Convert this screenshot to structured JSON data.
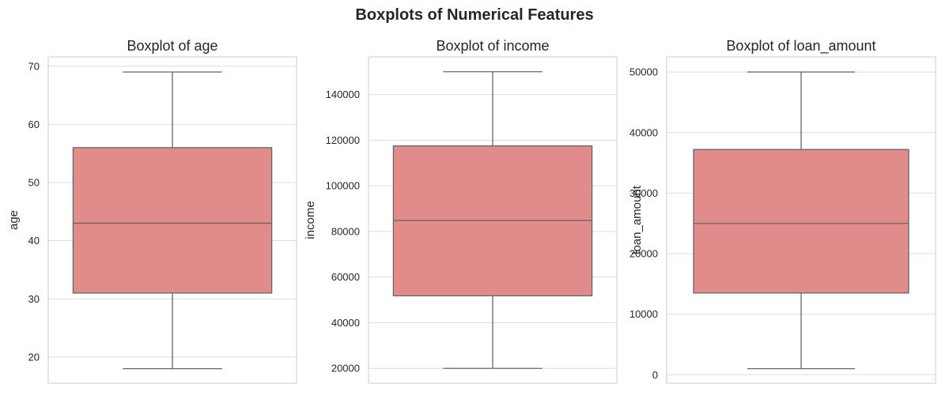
{
  "figure": {
    "title": "Boxplots of Numerical Features"
  },
  "chart_data": [
    {
      "type": "box",
      "title": "Boxplot of age",
      "xlabel": "",
      "ylabel": "age",
      "ylim": [
        15.5,
        71.6
      ],
      "yticks": [
        20,
        30,
        40,
        50,
        60,
        70
      ],
      "tick_labels": [
        "20",
        "30",
        "40",
        "50",
        "60",
        "70"
      ],
      "grid": true,
      "color": "#E28B8B",
      "line_color": "#666666",
      "stats": {
        "min": 18,
        "q1": 31,
        "median": 43,
        "q3": 56,
        "max": 69
      }
    },
    {
      "type": "box",
      "title": "Boxplot of income",
      "xlabel": "",
      "ylabel": "income",
      "ylim": [
        13500,
        156500
      ],
      "yticks": [
        20000,
        40000,
        60000,
        80000,
        100000,
        120000,
        140000
      ],
      "tick_labels": [
        "20000",
        "40000",
        "60000",
        "80000",
        "100000",
        "120000",
        "140000"
      ],
      "grid": true,
      "color": "#E28B8B",
      "line_color": "#666666",
      "stats": {
        "min": 20000,
        "q1": 51800,
        "median": 84800,
        "q3": 117500,
        "max": 150000
      }
    },
    {
      "type": "box",
      "title": "Boxplot of loan_amount",
      "xlabel": "",
      "ylabel": "loan_amount",
      "ylim": [
        -1400,
        52500
      ],
      "yticks": [
        0,
        10000,
        20000,
        30000,
        40000,
        50000
      ],
      "tick_labels": [
        "0",
        "10000",
        "20000",
        "30000",
        "40000",
        "50000"
      ],
      "grid": true,
      "color": "#E28B8B",
      "line_color": "#666666",
      "stats": {
        "min": 1000,
        "q1": 13500,
        "median": 25000,
        "q3": 37200,
        "max": 50000
      }
    }
  ]
}
